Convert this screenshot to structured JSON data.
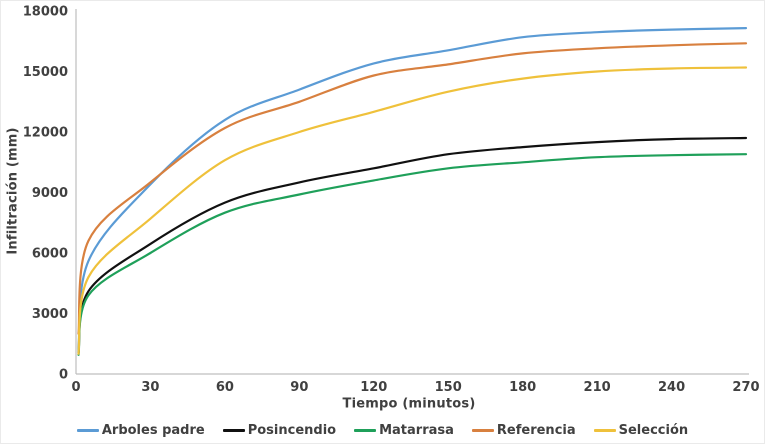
{
  "chart_data": {
    "type": "line",
    "title": "",
    "xlabel": "Tiempo (minutos)",
    "ylabel": "Infiltración (mm)",
    "x": [
      1,
      5,
      30,
      60,
      90,
      120,
      150,
      180,
      210,
      240,
      270
    ],
    "xlim": [
      0,
      270
    ],
    "ylim": [
      0,
      18000
    ],
    "xticks": [
      0,
      30,
      60,
      90,
      120,
      150,
      180,
      210,
      240,
      270
    ],
    "yticks": [
      0,
      3000,
      6000,
      9000,
      12000,
      15000,
      18000
    ],
    "grid": false,
    "legend_position": "bottom",
    "series": [
      {
        "name": "Arboles padre",
        "color": "#5B9BD5",
        "values": [
          1100,
          5600,
          9400,
          12600,
          14100,
          15400,
          16050,
          16700,
          16950,
          17080,
          17150
        ]
      },
      {
        "name": "Posincendio",
        "color": "#111111",
        "values": [
          1050,
          4100,
          6450,
          8500,
          9500,
          10200,
          10900,
          11250,
          11500,
          11650,
          11700
        ]
      },
      {
        "name": "Matarrasa",
        "color": "#1FA05A",
        "values": [
          950,
          3900,
          6000,
          8000,
          8900,
          9600,
          10200,
          10500,
          10750,
          10850,
          10900
        ]
      },
      {
        "name": "Referencia",
        "color": "#D8803F",
        "values": [
          2000,
          6600,
          9500,
          12200,
          13500,
          14800,
          15350,
          15900,
          16150,
          16300,
          16400
        ]
      },
      {
        "name": "Selección",
        "color": "#EFC13B",
        "values": [
          1000,
          4800,
          7700,
          10600,
          12000,
          13000,
          14000,
          14650,
          15000,
          15150,
          15200
        ]
      }
    ]
  },
  "colors": {
    "text": "#404040",
    "axis_line": "#BFBFBF",
    "background": "#FFFFFF",
    "border": "#EAEAEA"
  }
}
